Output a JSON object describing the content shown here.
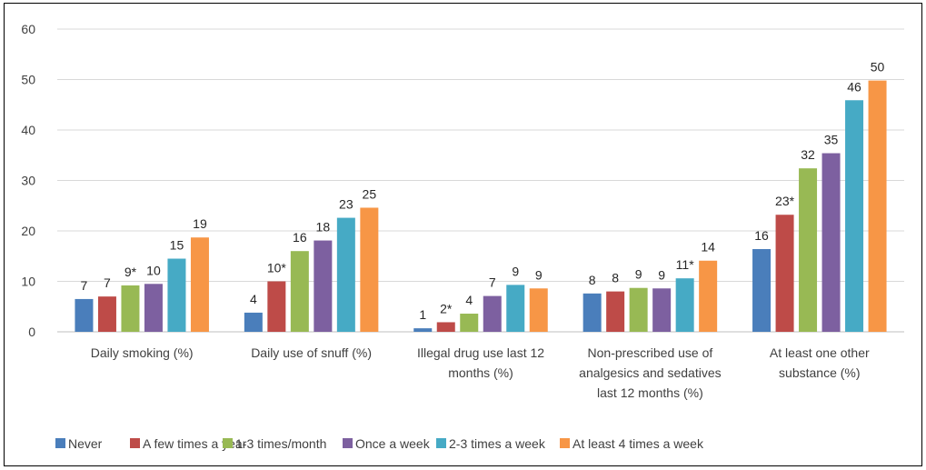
{
  "chart_data": {
    "type": "bar",
    "title": "",
    "xlabel": "",
    "ylabel": "",
    "ylim": [
      0,
      60
    ],
    "yticks": [
      0,
      10,
      20,
      30,
      40,
      50,
      60
    ],
    "grid": true,
    "legend_position": "bottom",
    "categories": [
      [
        "Daily smoking (%)"
      ],
      [
        "Daily use of snuff (%)"
      ],
      [
        "Illegal drug use last 12",
        "months (%)"
      ],
      [
        "Non-prescribed use of",
        "analgesics and sedatives",
        "last 12 months (%)"
      ],
      [
        "At least one other",
        "substance (%)"
      ]
    ],
    "series": [
      {
        "name": "Never",
        "color": "#4a7ebb",
        "values": [
          6.5,
          3.8,
          0.7,
          7.6,
          16.4
        ],
        "labels": [
          "7",
          "4",
          "1",
          "8",
          "16"
        ]
      },
      {
        "name": "A few times a year",
        "color": "#be4b48",
        "values": [
          7.0,
          10.0,
          1.9,
          8.0,
          23.2
        ],
        "labels": [
          "7",
          "10*",
          "2*",
          "8",
          "23*"
        ]
      },
      {
        "name": "1-3 times/month",
        "color": "#98b954",
        "values": [
          9.2,
          16.0,
          3.6,
          8.7,
          32.4
        ],
        "labels": [
          "9*",
          "16",
          "4",
          "9",
          "32"
        ]
      },
      {
        "name": "Once a week",
        "color": "#7d60a0",
        "values": [
          9.5,
          18.1,
          7.1,
          8.6,
          35.4
        ],
        "labels": [
          "10",
          "18",
          "7",
          "9",
          "35"
        ]
      },
      {
        "name": "2-3 times a week",
        "color": "#46aac5",
        "values": [
          14.5,
          22.6,
          9.3,
          10.6,
          45.9
        ],
        "labels": [
          "15",
          "23",
          "9",
          "11*",
          "46"
        ]
      },
      {
        "name": "At least 4 times a week",
        "color": "#f79646",
        "values": [
          18.7,
          24.6,
          8.6,
          14.1,
          49.8
        ],
        "labels": [
          "19",
          "25",
          "9",
          "14",
          "50"
        ]
      }
    ]
  }
}
